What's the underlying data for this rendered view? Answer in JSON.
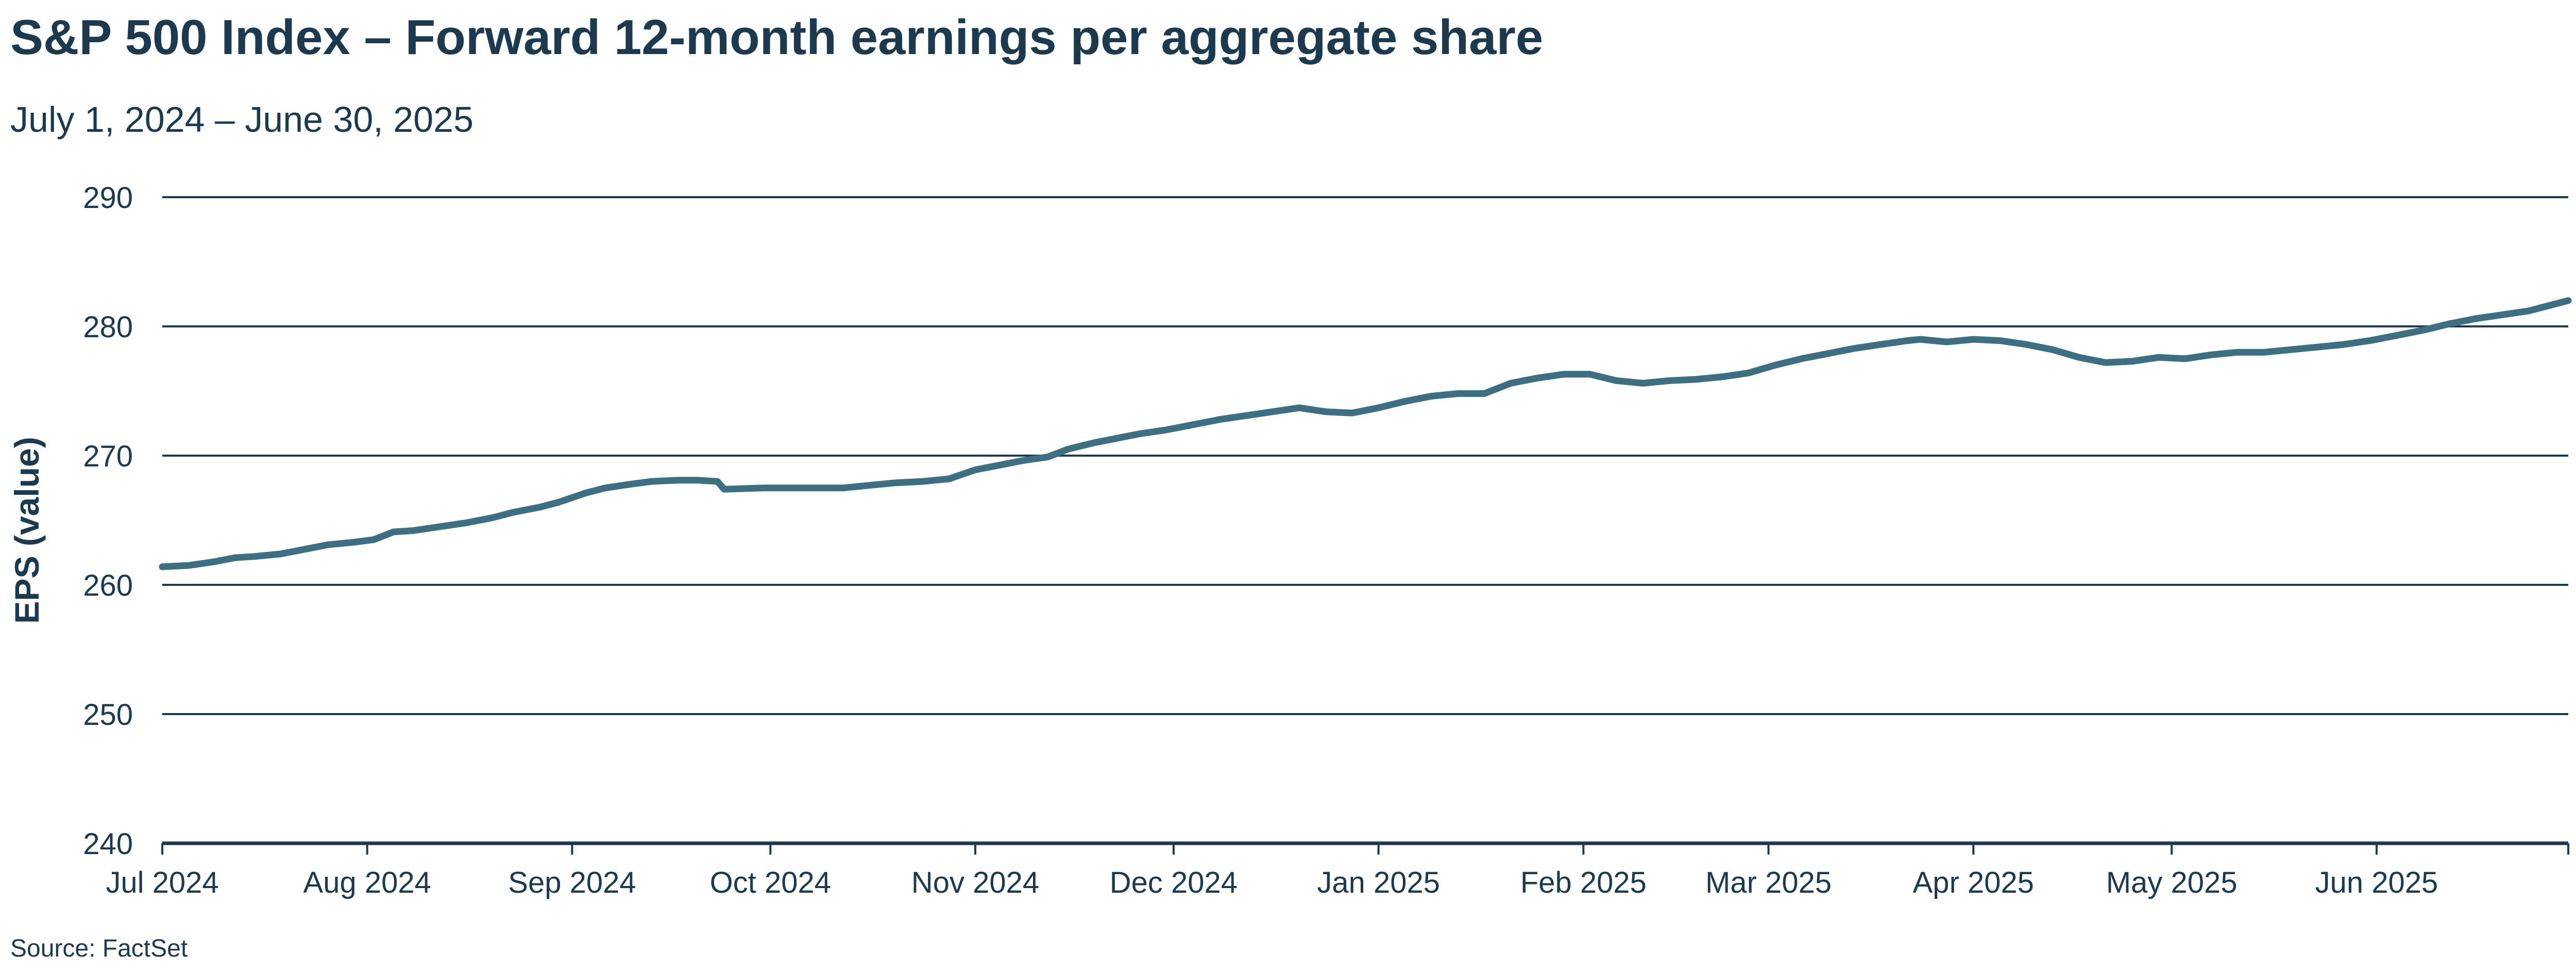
{
  "colors": {
    "text": "#1b3a4f",
    "grid": "#1b3a4f",
    "series": "#3c6f82"
  },
  "source": "Source: FactSet",
  "chart_data": {
    "type": "line",
    "title": "S&P 500 Index – Forward 12-month earnings per aggregate share",
    "subtitle": "July 1, 2024 – June 30, 2025",
    "xlabel": "",
    "ylabel": "EPS (value)",
    "ylim": [
      240,
      290
    ],
    "yticks": [
      "240",
      "250",
      "260",
      "270",
      "280",
      "290"
    ],
    "xlim": [
      "2024-07-01",
      "2025-06-30"
    ],
    "xticks": [
      {
        "date": "2024-07-01",
        "label": "Jul 2024"
      },
      {
        "date": "2024-08-01",
        "label": "Aug 2024"
      },
      {
        "date": "2024-09-01",
        "label": "Sep 2024"
      },
      {
        "date": "2024-10-01",
        "label": "Oct 2024"
      },
      {
        "date": "2024-11-01",
        "label": "Nov 2024"
      },
      {
        "date": "2024-12-01",
        "label": "Dec 2024"
      },
      {
        "date": "2025-01-01",
        "label": "Jan 2025"
      },
      {
        "date": "2025-02-01",
        "label": "Feb 2025"
      },
      {
        "date": "2025-03-01",
        "label": "Mar 2025"
      },
      {
        "date": "2025-04-01",
        "label": "Apr 2025"
      },
      {
        "date": "2025-05-01",
        "label": "May 2025"
      },
      {
        "date": "2025-06-01",
        "label": "Jun 2025"
      }
    ],
    "grid": "horizontal",
    "legend": "none",
    "series": [
      {
        "x": [
          "2024-07-01",
          "2024-07-05",
          "2024-07-09",
          "2024-07-12",
          "2024-07-15",
          "2024-07-19",
          "2024-07-23",
          "2024-07-26",
          "2024-07-30",
          "2024-08-02",
          "2024-08-05",
          "2024-08-08",
          "2024-08-12",
          "2024-08-16",
          "2024-08-20",
          "2024-08-23",
          "2024-08-27",
          "2024-08-30",
          "2024-09-03",
          "2024-09-06",
          "2024-09-10",
          "2024-09-13",
          "2024-09-17",
          "2024-09-20",
          "2024-09-23",
          "2024-09-24",
          "2024-09-30",
          "2024-10-04",
          "2024-10-08",
          "2024-10-12",
          "2024-10-16",
          "2024-10-20",
          "2024-10-24",
          "2024-10-28",
          "2024-11-01",
          "2024-11-05",
          "2024-11-08",
          "2024-11-12",
          "2024-11-15",
          "2024-11-19",
          "2024-11-22",
          "2024-11-26",
          "2024-11-30",
          "2024-12-04",
          "2024-12-08",
          "2024-12-12",
          "2024-12-16",
          "2024-12-20",
          "2024-12-24",
          "2024-12-28",
          "2025-01-01",
          "2025-01-05",
          "2025-01-09",
          "2025-01-13",
          "2025-01-17",
          "2025-01-21",
          "2025-01-25",
          "2025-01-29",
          "2025-02-02",
          "2025-02-06",
          "2025-02-10",
          "2025-02-14",
          "2025-02-18",
          "2025-02-22",
          "2025-02-26",
          "2025-03-02",
          "2025-03-06",
          "2025-03-10",
          "2025-03-14",
          "2025-03-18",
          "2025-03-22",
          "2025-03-24",
          "2025-03-28",
          "2025-04-01",
          "2025-04-05",
          "2025-04-09",
          "2025-04-13",
          "2025-04-17",
          "2025-04-21",
          "2025-04-25",
          "2025-04-29",
          "2025-05-03",
          "2025-05-07",
          "2025-05-11",
          "2025-05-15",
          "2025-05-19",
          "2025-05-23",
          "2025-05-27",
          "2025-05-31",
          "2025-06-04",
          "2025-06-08",
          "2025-06-12",
          "2025-06-16",
          "2025-06-20",
          "2025-06-24",
          "2025-06-30"
        ],
        "values": [
          261.4,
          261.5,
          261.8,
          262.1,
          262.2,
          262.4,
          262.8,
          263.1,
          263.3,
          263.5,
          264.1,
          264.2,
          264.5,
          264.8,
          265.2,
          265.6,
          266.0,
          266.4,
          267.1,
          267.5,
          267.8,
          268.0,
          268.1,
          268.1,
          268.0,
          267.4,
          267.5,
          267.5,
          267.5,
          267.5,
          267.7,
          267.9,
          268.0,
          268.2,
          268.9,
          269.3,
          269.6,
          269.9,
          270.5,
          271.0,
          271.3,
          271.7,
          272.0,
          272.4,
          272.8,
          273.1,
          273.4,
          273.7,
          273.4,
          273.3,
          273.7,
          274.2,
          274.6,
          274.8,
          274.8,
          275.6,
          276.0,
          276.3,
          276.3,
          275.8,
          275.6,
          275.8,
          275.9,
          276.1,
          276.4,
          277.0,
          277.5,
          277.9,
          278.3,
          278.6,
          278.9,
          279.0,
          278.8,
          279.0,
          278.9,
          278.6,
          278.2,
          277.6,
          277.2,
          277.3,
          277.6,
          277.5,
          277.8,
          278.0,
          278.0,
          278.2,
          278.4,
          278.6,
          278.9,
          279.3,
          279.7,
          280.2,
          280.6,
          280.9,
          281.2,
          282.0
        ]
      }
    ]
  }
}
